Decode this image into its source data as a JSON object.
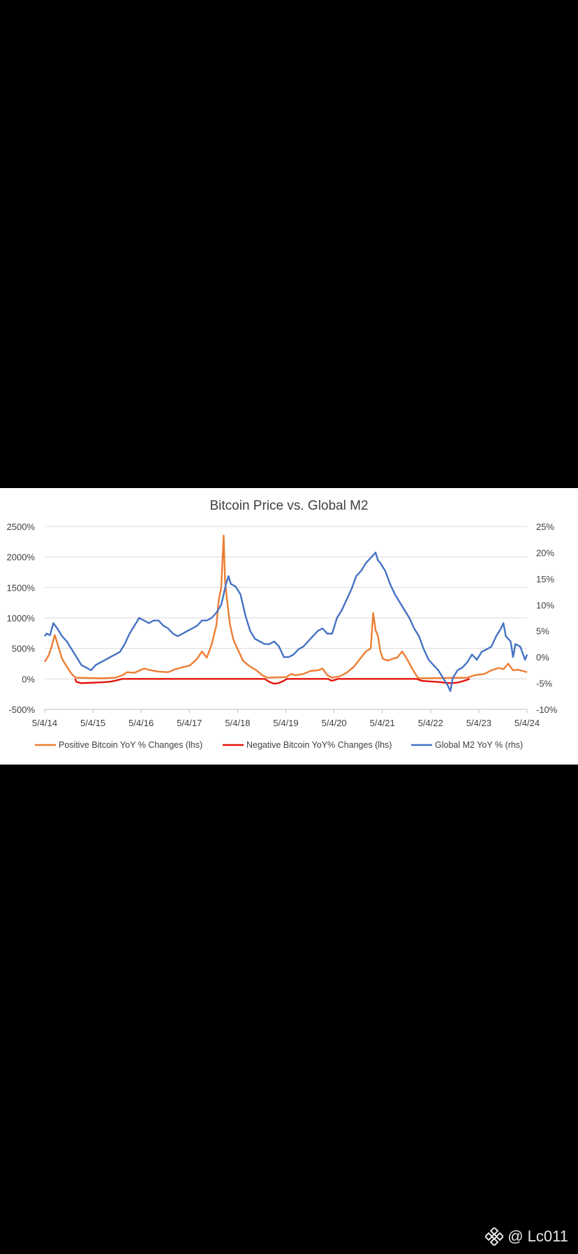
{
  "watermark": {
    "handle": "@ Lc011",
    "icon": "binance-logo-icon"
  },
  "chart_data": {
    "type": "line",
    "title": "Bitcoin Price vs. Global M2",
    "x_labels": [
      "5/4/14",
      "5/4/15",
      "5/4/16",
      "5/4/17",
      "5/4/18",
      "5/4/19",
      "5/4/20",
      "5/4/21",
      "5/4/22",
      "5/4/23",
      "5/4/24"
    ],
    "x_range": [
      2014.34,
      2024.34
    ],
    "y_left": {
      "ticks": [
        "2500%",
        "2000%",
        "1500%",
        "1000%",
        "500%",
        "0%",
        "-500%"
      ],
      "range": [
        -500,
        2500
      ]
    },
    "y_right": {
      "ticks": [
        "25%",
        "20%",
        "15%",
        "10%",
        "5%",
        "0%",
        "-5%",
        "-10%"
      ],
      "range": [
        -10,
        25
      ]
    },
    "grid": true,
    "legend_position": "bottom",
    "series": [
      {
        "name": "Positive Bitcoin YoY % Changes (lhs)",
        "axis": "left",
        "color": "#ED7D31",
        "points": [
          [
            2014.34,
            280
          ],
          [
            2014.42,
            380
          ],
          [
            2014.48,
            520
          ],
          [
            2014.55,
            720
          ],
          [
            2014.62,
            540
          ],
          [
            2014.7,
            330
          ],
          [
            2014.8,
            200
          ],
          [
            2014.9,
            80
          ],
          [
            2014.98,
            20
          ],
          [
            2015.55,
            10
          ],
          [
            2015.8,
            20
          ],
          [
            2015.95,
            60
          ],
          [
            2016.05,
            110
          ],
          [
            2016.2,
            100
          ],
          [
            2016.4,
            170
          ],
          [
            2016.55,
            140
          ],
          [
            2016.7,
            120
          ],
          [
            2016.9,
            110
          ],
          [
            2017.05,
            160
          ],
          [
            2017.2,
            190
          ],
          [
            2017.35,
            220
          ],
          [
            2017.5,
            330
          ],
          [
            2017.6,
            450
          ],
          [
            2017.7,
            350
          ],
          [
            2017.8,
            560
          ],
          [
            2017.9,
            880
          ],
          [
            2017.95,
            1300
          ],
          [
            2018.0,
            1500
          ],
          [
            2018.05,
            2350
          ],
          [
            2018.08,
            1600
          ],
          [
            2018.12,
            1300
          ],
          [
            2018.18,
            900
          ],
          [
            2018.25,
            650
          ],
          [
            2018.32,
            520
          ],
          [
            2018.38,
            420
          ],
          [
            2018.45,
            300
          ],
          [
            2018.55,
            230
          ],
          [
            2018.65,
            180
          ],
          [
            2018.75,
            130
          ],
          [
            2018.85,
            60
          ],
          [
            2018.95,
            20
          ],
          [
            2019.35,
            30
          ],
          [
            2019.45,
            80
          ],
          [
            2019.55,
            60
          ],
          [
            2019.7,
            80
          ],
          [
            2019.85,
            130
          ],
          [
            2020.0,
            140
          ],
          [
            2020.1,
            170
          ],
          [
            2020.2,
            60
          ],
          [
            2020.3,
            20
          ],
          [
            2020.45,
            40
          ],
          [
            2020.6,
            100
          ],
          [
            2020.75,
            200
          ],
          [
            2020.9,
            350
          ],
          [
            2021.0,
            450
          ],
          [
            2021.1,
            500
          ],
          [
            2021.15,
            1080
          ],
          [
            2021.2,
            800
          ],
          [
            2021.25,
            700
          ],
          [
            2021.3,
            450
          ],
          [
            2021.35,
            330
          ],
          [
            2021.45,
            300
          ],
          [
            2021.55,
            330
          ],
          [
            2021.65,
            350
          ],
          [
            2021.75,
            450
          ],
          [
            2021.85,
            330
          ],
          [
            2021.95,
            180
          ],
          [
            2022.05,
            50
          ],
          [
            2022.1,
            10
          ],
          [
            2023.1,
            20
          ],
          [
            2023.25,
            60
          ],
          [
            2023.45,
            80
          ],
          [
            2023.6,
            140
          ],
          [
            2023.75,
            180
          ],
          [
            2023.85,
            160
          ],
          [
            2023.95,
            250
          ],
          [
            2024.05,
            140
          ],
          [
            2024.15,
            150
          ],
          [
            2024.25,
            130
          ],
          [
            2024.34,
            110
          ]
        ]
      },
      {
        "name": "Negative Bitcoin YoY% Changes (lhs)",
        "axis": "left",
        "color": "#E3120B",
        "points": [
          [
            2014.97,
            0
          ],
          [
            2015.0,
            -50
          ],
          [
            2015.1,
            -70
          ],
          [
            2015.25,
            -65
          ],
          [
            2015.4,
            -60
          ],
          [
            2015.55,
            -55
          ],
          [
            2015.7,
            -45
          ],
          [
            2015.8,
            -30
          ],
          [
            2015.9,
            -10
          ],
          [
            2015.95,
            0
          ],
          [
            2018.9,
            0
          ],
          [
            2019.0,
            -50
          ],
          [
            2019.1,
            -80
          ],
          [
            2019.2,
            -65
          ],
          [
            2019.3,
            -30
          ],
          [
            2019.36,
            0
          ],
          [
            2020.22,
            0
          ],
          [
            2020.28,
            -30
          ],
          [
            2020.35,
            -20
          ],
          [
            2020.42,
            0
          ],
          [
            2022.05,
            0
          ],
          [
            2022.15,
            -30
          ],
          [
            2022.3,
            -40
          ],
          [
            2022.5,
            -50
          ],
          [
            2022.65,
            -65
          ],
          [
            2022.78,
            -70
          ],
          [
            2022.9,
            -60
          ],
          [
            2023.0,
            -40
          ],
          [
            2023.1,
            -15
          ],
          [
            2023.15,
            0
          ]
        ]
      },
      {
        "name": "Global M2 YoY % (rhs)",
        "axis": "right",
        "color": "#4472C4",
        "points": [
          [
            2014.34,
            4.0
          ],
          [
            2014.38,
            4.5
          ],
          [
            2014.45,
            4.2
          ],
          [
            2014.52,
            6.5
          ],
          [
            2014.6,
            5.5
          ],
          [
            2014.7,
            4.0
          ],
          [
            2014.8,
            3.0
          ],
          [
            2014.9,
            1.5
          ],
          [
            2015.0,
            0.0
          ],
          [
            2015.1,
            -1.5
          ],
          [
            2015.2,
            -2.0
          ],
          [
            2015.3,
            -2.5
          ],
          [
            2015.4,
            -1.5
          ],
          [
            2015.5,
            -1.0
          ],
          [
            2015.6,
            -0.5
          ],
          [
            2015.7,
            0.0
          ],
          [
            2015.8,
            0.5
          ],
          [
            2015.9,
            1.0
          ],
          [
            2016.0,
            2.5
          ],
          [
            2016.1,
            4.5
          ],
          [
            2016.2,
            6.0
          ],
          [
            2016.3,
            7.5
          ],
          [
            2016.4,
            7.0
          ],
          [
            2016.5,
            6.5
          ],
          [
            2016.6,
            7.0
          ],
          [
            2016.7,
            7.0
          ],
          [
            2016.8,
            6.0
          ],
          [
            2016.9,
            5.5
          ],
          [
            2017.0,
            4.5
          ],
          [
            2017.1,
            4.0
          ],
          [
            2017.2,
            4.5
          ],
          [
            2017.3,
            5.0
          ],
          [
            2017.4,
            5.5
          ],
          [
            2017.5,
            6.0
          ],
          [
            2017.6,
            7.0
          ],
          [
            2017.7,
            7.0
          ],
          [
            2017.8,
            7.5
          ],
          [
            2017.9,
            8.5
          ],
          [
            2018.0,
            10.0
          ],
          [
            2018.05,
            12.0
          ],
          [
            2018.1,
            14.0
          ],
          [
            2018.15,
            15.5
          ],
          [
            2018.2,
            14.0
          ],
          [
            2018.3,
            13.5
          ],
          [
            2018.4,
            12.0
          ],
          [
            2018.5,
            8.0
          ],
          [
            2018.6,
            5.0
          ],
          [
            2018.7,
            3.5
          ],
          [
            2018.8,
            3.0
          ],
          [
            2018.9,
            2.5
          ],
          [
            2019.0,
            2.5
          ],
          [
            2019.1,
            3.0
          ],
          [
            2019.2,
            2.0
          ],
          [
            2019.3,
            0.0
          ],
          [
            2019.4,
            0.0
          ],
          [
            2019.5,
            0.5
          ],
          [
            2019.6,
            1.5
          ],
          [
            2019.7,
            2.0
          ],
          [
            2019.8,
            3.0
          ],
          [
            2019.9,
            4.0
          ],
          [
            2020.0,
            5.0
          ],
          [
            2020.1,
            5.5
          ],
          [
            2020.2,
            4.5
          ],
          [
            2020.3,
            4.5
          ],
          [
            2020.4,
            7.5
          ],
          [
            2020.5,
            9.0
          ],
          [
            2020.6,
            11.0
          ],
          [
            2020.7,
            13.0
          ],
          [
            2020.8,
            15.5
          ],
          [
            2020.9,
            16.5
          ],
          [
            2021.0,
            18.0
          ],
          [
            2021.1,
            19.0
          ],
          [
            2021.15,
            19.5
          ],
          [
            2021.2,
            20.0
          ],
          [
            2021.25,
            18.5
          ],
          [
            2021.3,
            18.0
          ],
          [
            2021.4,
            16.5
          ],
          [
            2021.5,
            14.0
          ],
          [
            2021.6,
            12.0
          ],
          [
            2021.7,
            10.5
          ],
          [
            2021.8,
            9.0
          ],
          [
            2021.9,
            7.5
          ],
          [
            2022.0,
            5.5
          ],
          [
            2022.1,
            4.0
          ],
          [
            2022.2,
            1.5
          ],
          [
            2022.3,
            -0.5
          ],
          [
            2022.4,
            -1.5
          ],
          [
            2022.5,
            -2.5
          ],
          [
            2022.6,
            -4.0
          ],
          [
            2022.7,
            -5.5
          ],
          [
            2022.75,
            -6.5
          ],
          [
            2022.8,
            -4.0
          ],
          [
            2022.9,
            -2.5
          ],
          [
            2023.0,
            -2.0
          ],
          [
            2023.1,
            -1.0
          ],
          [
            2023.2,
            0.5
          ],
          [
            2023.3,
            -0.5
          ],
          [
            2023.4,
            1.0
          ],
          [
            2023.5,
            1.5
          ],
          [
            2023.6,
            2.0
          ],
          [
            2023.7,
            4.0
          ],
          [
            2023.8,
            5.5
          ],
          [
            2023.85,
            6.5
          ],
          [
            2023.9,
            4.0
          ],
          [
            2024.0,
            3.0
          ],
          [
            2024.05,
            0.0
          ],
          [
            2024.1,
            2.5
          ],
          [
            2024.2,
            2.0
          ],
          [
            2024.3,
            -0.5
          ],
          [
            2024.34,
            0.5
          ]
        ]
      }
    ]
  }
}
